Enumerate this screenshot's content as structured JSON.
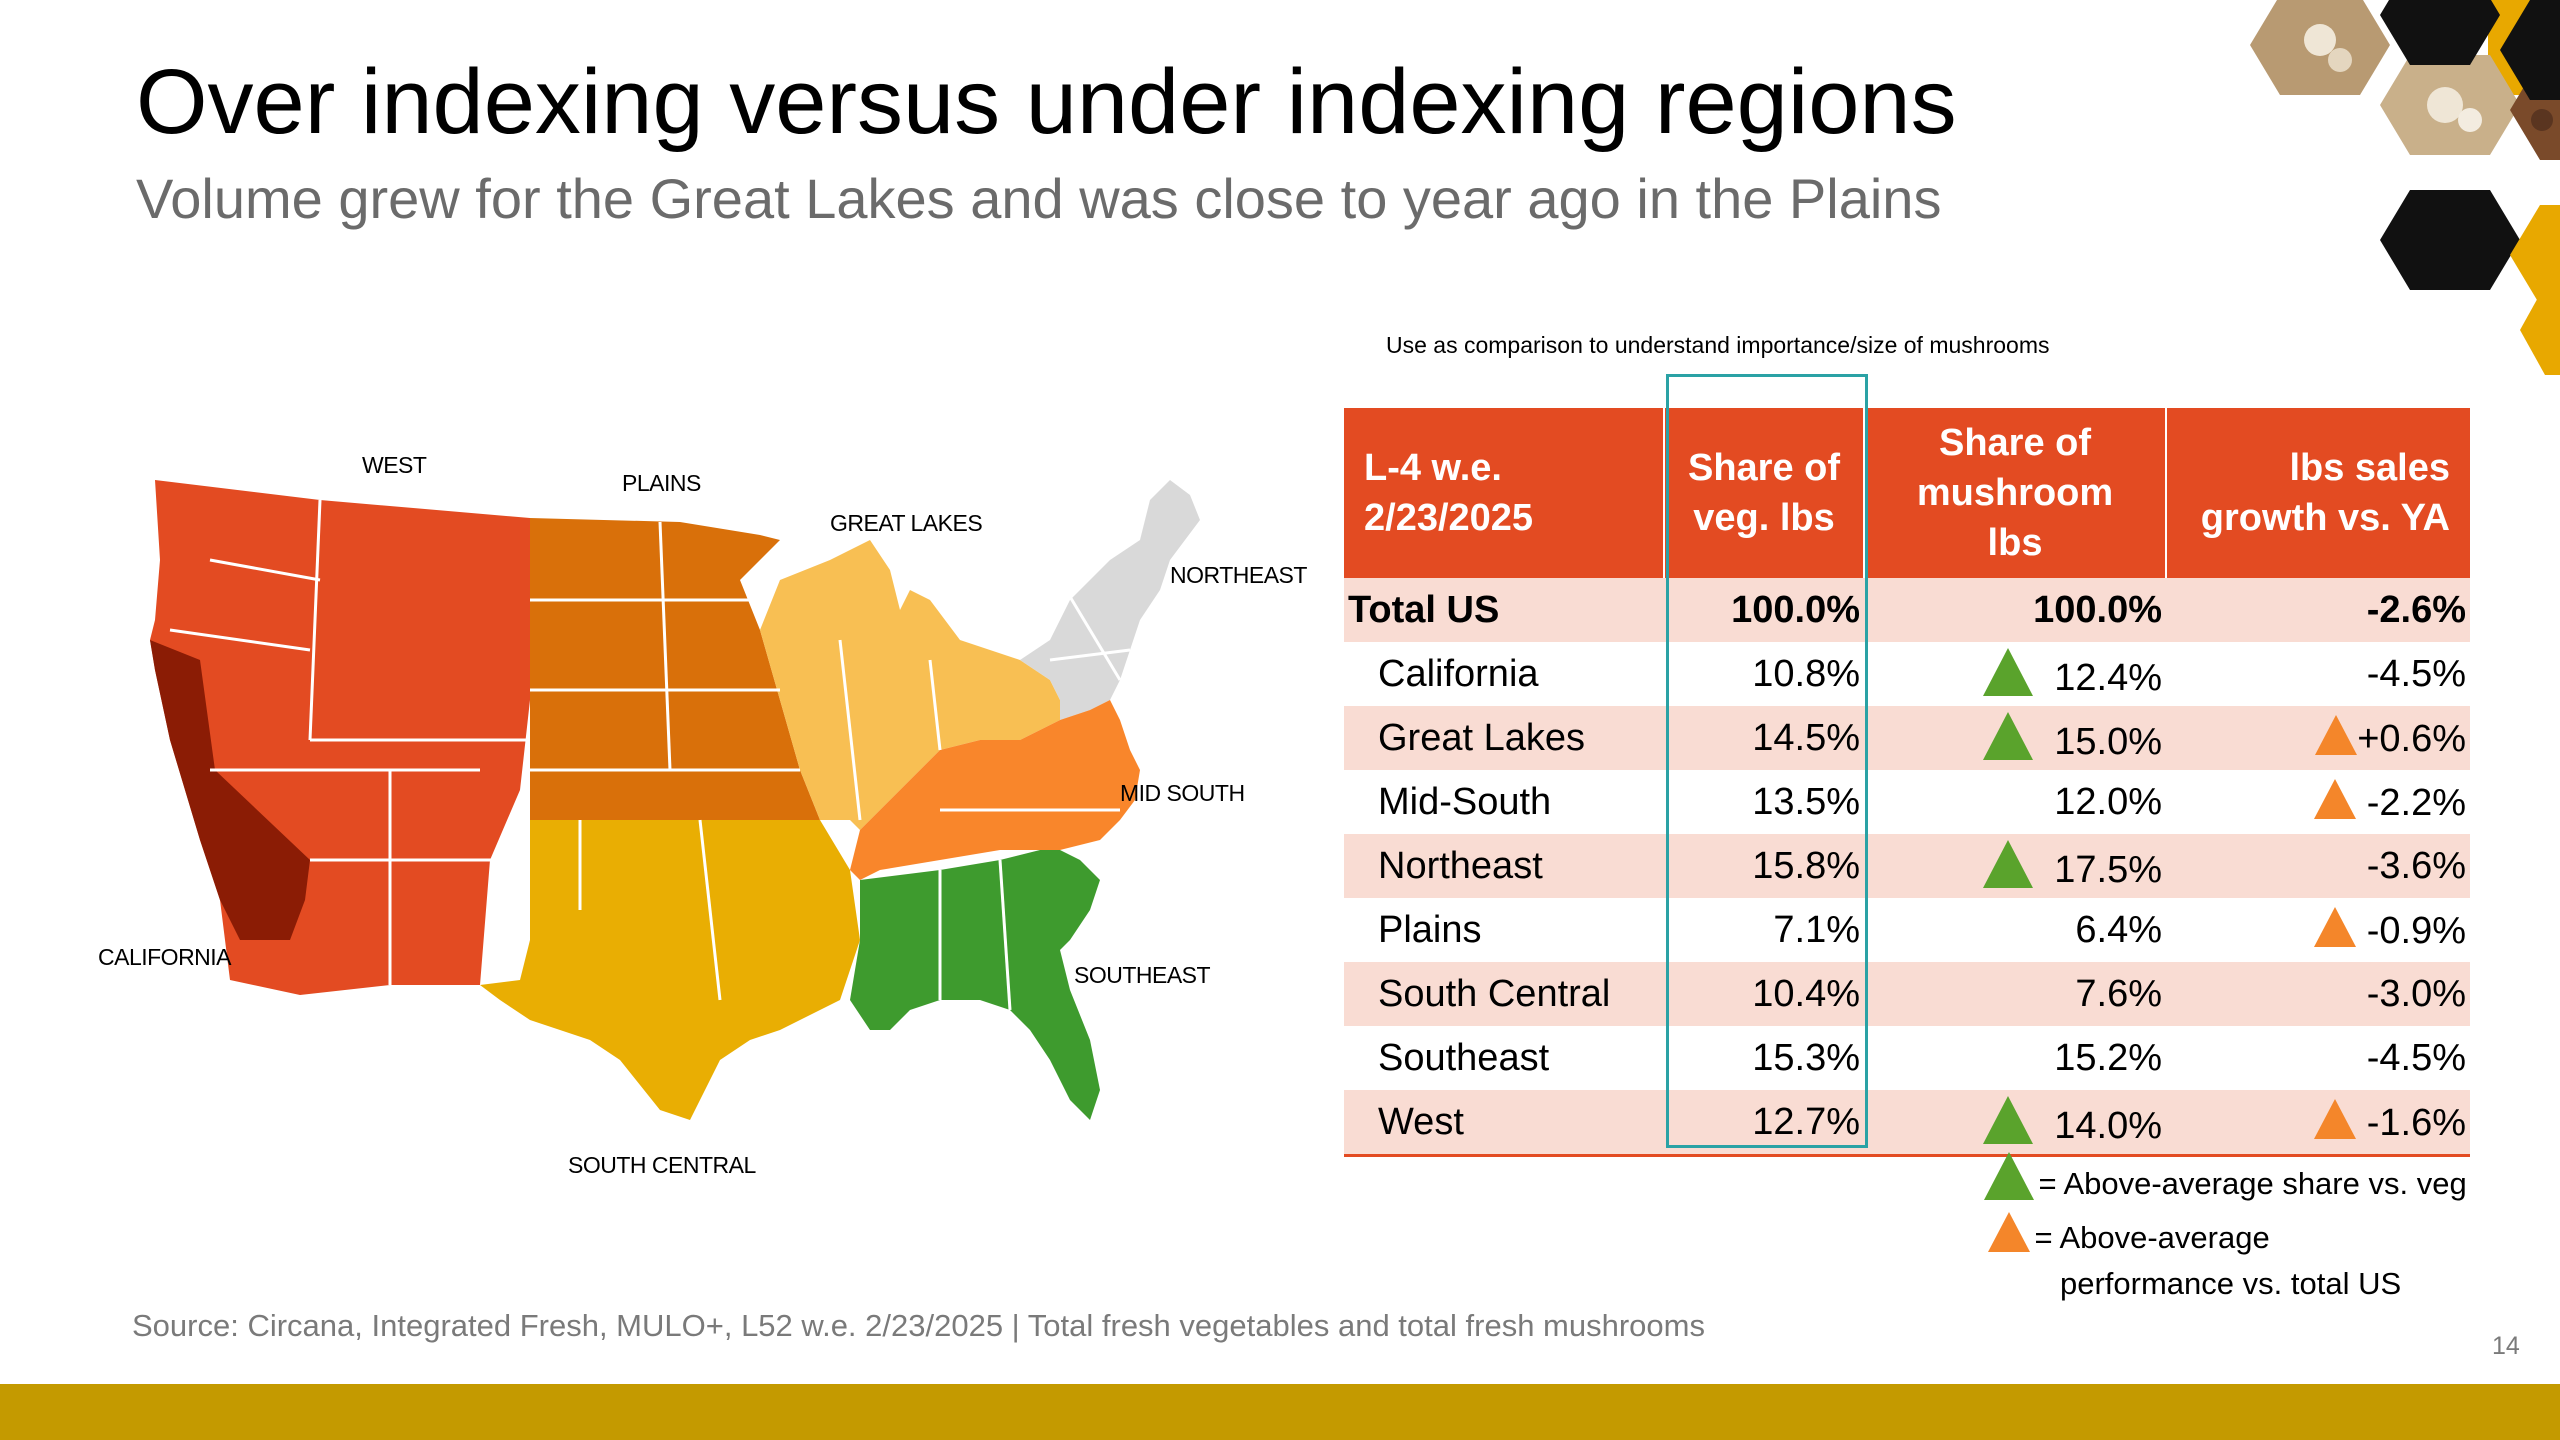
{
  "title": "Over indexing versus under indexing regions",
  "subtitle": "Volume grew for the Great Lakes and was close to year ago in the Plains",
  "map": {
    "region_labels": {
      "west": "WEST",
      "plains": "PLAINS",
      "great_lakes": "GREAT LAKES",
      "northeast": "NORTHEAST",
      "mid_south": "MID SOUTH",
      "southeast": "SOUTHEAST",
      "south_central": "SOUTH CENTRAL",
      "california": "CALIFORNIA"
    },
    "region_colors": {
      "west": "#e34b22",
      "california": "#8b1c05",
      "plains": "#d9700a",
      "great_lakes": "#f8bf53",
      "northeast": "#d9d9d9",
      "mid_south": "#f9862b",
      "southeast": "#3e9b2e",
      "south_central": "#e9ae03"
    }
  },
  "table": {
    "note": "Use as comparison to understand importance/size of mushrooms",
    "headers": {
      "period": "L-4 w.e. 2/23/2025",
      "share_veg": "Share of veg. lbs",
      "share_mushroom": "Share of mushroom lbs",
      "growth": "lbs sales growth vs. YA"
    },
    "rows": [
      {
        "region": "Total US",
        "share_veg": "100.0%",
        "share_mushroom": "100.0%",
        "growth": "-2.6%",
        "above_share": false,
        "above_perf": false
      },
      {
        "region": "California",
        "share_veg": "10.8%",
        "share_mushroom": "12.4%",
        "growth": "-4.5%",
        "above_share": true,
        "above_perf": false
      },
      {
        "region": "Great Lakes",
        "share_veg": "14.5%",
        "share_mushroom": "15.0%",
        "growth": "+0.6%",
        "above_share": true,
        "above_perf": true
      },
      {
        "region": "Mid-South",
        "share_veg": "13.5%",
        "share_mushroom": "12.0%",
        "growth": "-2.2%",
        "above_share": false,
        "above_perf": true
      },
      {
        "region": "Northeast",
        "share_veg": "15.8%",
        "share_mushroom": "17.5%",
        "growth": "-3.6%",
        "above_share": true,
        "above_perf": false
      },
      {
        "region": "Plains",
        "share_veg": "7.1%",
        "share_mushroom": "6.4%",
        "growth": "-0.9%",
        "above_share": false,
        "above_perf": true
      },
      {
        "region": "South Central",
        "share_veg": "10.4%",
        "share_mushroom": "7.6%",
        "growth": "-3.0%",
        "above_share": false,
        "above_perf": false
      },
      {
        "region": "Southeast",
        "share_veg": "15.3%",
        "share_mushroom": "15.2%",
        "growth": "-4.5%",
        "above_share": false,
        "above_perf": false
      },
      {
        "region": "West",
        "share_veg": "12.7%",
        "share_mushroom": "14.0%",
        "growth": "-1.6%",
        "above_share": true,
        "above_perf": true
      }
    ],
    "header_color": "#e34b22",
    "shade_color": "#f9dcd3",
    "highlight_color": "#2aa2a5"
  },
  "legend": {
    "green_text": "= Above-average share vs. veg",
    "orange_text_line1": "= Above-average",
    "orange_text_line2": "performance vs. total US",
    "green_color": "#5aa32c",
    "orange_color": "#f4862a"
  },
  "source": "Source: Circana, Integrated Fresh, MULO+, L52 w.e. 2/23/2025  |  Total fresh vegetables and total fresh mushrooms",
  "page_number": "14",
  "footer_color": "#c49a00"
}
